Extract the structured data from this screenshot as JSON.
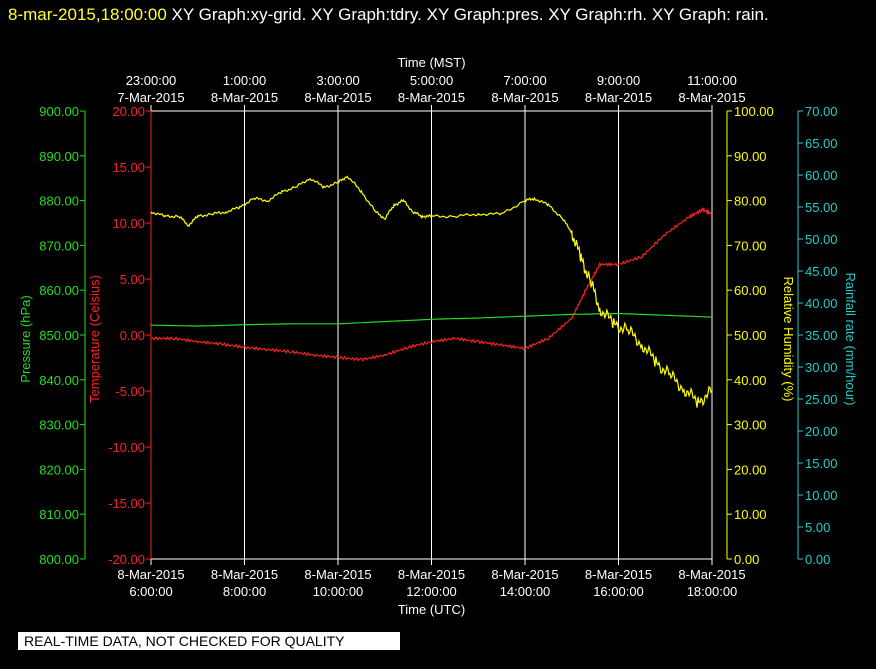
{
  "header": {
    "date": "8-mar-2015,18:00:00",
    "title": " XY Graph:xy-grid.  XY Graph:tdry.  XY Graph:pres.  XY Graph:rh.  XY Graph: rain."
  },
  "disclaimer": "REAL-TIME DATA, NOT CHECKED FOR QUALITY",
  "colors": {
    "background": "#000000",
    "grid": "#ffffff",
    "temperature": "#ff2020",
    "pressure": "#22dd22",
    "humidity": "#ffff00",
    "rainfall": "#22cccc"
  },
  "chart_data": {
    "type": "line",
    "grid": true,
    "xlabel_bottom": "Time (UTC)",
    "xlabel_top": "Time (MST)",
    "x_ticks_bottom": [
      {
        "date": "8-Mar-2015",
        "time": "6:00:00"
      },
      {
        "date": "8-Mar-2015",
        "time": "8:00:00"
      },
      {
        "date": "8-Mar-2015",
        "time": "10:00:00"
      },
      {
        "date": "8-Mar-2015",
        "time": "12:00:00"
      },
      {
        "date": "8-Mar-2015",
        "time": "14:00:00"
      },
      {
        "date": "8-Mar-2015",
        "time": "16:00:00"
      },
      {
        "date": "8-Mar-2015",
        "time": "18:00:00"
      }
    ],
    "x_ticks_top": [
      {
        "time": "23:00:00",
        "date": "7-Mar-2015"
      },
      {
        "time": "1:00:00",
        "date": "8-Mar-2015"
      },
      {
        "time": "3:00:00",
        "date": "8-Mar-2015"
      },
      {
        "time": "5:00:00",
        "date": "8-Mar-2015"
      },
      {
        "time": "7:00:00",
        "date": "8-Mar-2015"
      },
      {
        "time": "9:00:00",
        "date": "8-Mar-2015"
      },
      {
        "time": "11:00:00",
        "date": "8-Mar-2015"
      }
    ],
    "axes": {
      "pressure": {
        "label": "Pressure (hPa)",
        "range": [
          800,
          900
        ],
        "ticks": [
          "800.00",
          "810.00",
          "820.00",
          "830.00",
          "840.00",
          "850.00",
          "860.00",
          "870.00",
          "880.00",
          "890.00",
          "900.00"
        ]
      },
      "temperature": {
        "label": "Temperature (Celsius)",
        "range": [
          -20,
          20
        ],
        "ticks": [
          "-20.00",
          "-15.00",
          "-10.00",
          "-5.00",
          "0.00",
          "5.00",
          "10.00",
          "15.00",
          "20.00"
        ]
      },
      "humidity": {
        "label": "Relative Humidity (%)",
        "range": [
          0,
          100
        ],
        "ticks": [
          "0.00",
          "10.00",
          "20.00",
          "30.00",
          "40.00",
          "50.00",
          "60.00",
          "70.00",
          "80.00",
          "90.00",
          "100.00"
        ]
      },
      "rainfall": {
        "label": "Rainfall rate (mm/hour)",
        "range": [
          0,
          70
        ],
        "ticks": [
          "0.00",
          "5.00",
          "10.00",
          "15.00",
          "20.00",
          "25.00",
          "30.00",
          "35.00",
          "40.00",
          "45.00",
          "50.00",
          "55.00",
          "60.00",
          "65.00",
          "70.00"
        ]
      }
    },
    "series": [
      {
        "key": "temperature",
        "x_hours_utc": [
          6.0,
          6.5,
          7.0,
          7.5,
          8.0,
          8.5,
          9.0,
          9.5,
          10.0,
          10.5,
          11.0,
          11.5,
          12.0,
          12.5,
          13.0,
          13.5,
          14.0,
          14.5,
          15.0,
          15.3,
          15.6,
          16.0,
          16.5,
          17.0,
          17.5,
          17.8,
          18.0
        ],
        "values": [
          -0.3,
          -0.3,
          -0.6,
          -0.8,
          -1.1,
          -1.3,
          -1.5,
          -1.8,
          -2.0,
          -2.2,
          -1.8,
          -1.1,
          -0.6,
          -0.3,
          -0.6,
          -0.9,
          -1.2,
          -0.3,
          1.5,
          4.0,
          6.3,
          6.3,
          7.0,
          9.0,
          10.5,
          11.2,
          10.8
        ]
      },
      {
        "key": "pressure",
        "x_hours_utc": [
          6.0,
          7.0,
          8.0,
          9.0,
          10.0,
          11.0,
          12.0,
          13.0,
          14.0,
          15.0,
          16.0,
          17.0,
          18.0
        ],
        "values": [
          852.2,
          852.0,
          852.3,
          852.5,
          852.5,
          853.0,
          853.5,
          853.8,
          854.2,
          854.6,
          854.8,
          854.4,
          854.0
        ]
      },
      {
        "key": "humidity",
        "x_hours_utc": [
          6.0,
          6.3,
          6.6,
          6.8,
          7.0,
          7.3,
          7.6,
          7.9,
          8.2,
          8.5,
          8.8,
          9.1,
          9.4,
          9.7,
          10.0,
          10.2,
          10.5,
          10.8,
          11.0,
          11.2,
          11.4,
          11.6,
          11.8,
          12.0,
          12.5,
          13.0,
          13.5,
          14.0,
          14.2,
          14.5,
          14.8,
          15.0,
          15.2,
          15.4,
          15.6,
          15.9,
          16.2,
          16.5,
          16.8,
          17.1,
          17.4,
          17.7,
          18.0
        ],
        "values": [
          77.5,
          76.5,
          76.5,
          74.5,
          76.5,
          77.0,
          77.5,
          78.5,
          80.5,
          80.0,
          82.0,
          83.0,
          85.0,
          83.0,
          84.0,
          85.5,
          82.0,
          77.5,
          76.0,
          79.0,
          80.0,
          77.5,
          76.5,
          76.5,
          76.5,
          77.0,
          77.0,
          80.0,
          80.5,
          79.0,
          76.0,
          73.0,
          67.0,
          62.0,
          56.0,
          52.5,
          51.0,
          48.0,
          44.0,
          41.0,
          38.0,
          35.0,
          37.5
        ]
      },
      {
        "key": "rainfall",
        "x_hours_utc": [],
        "values": []
      }
    ]
  }
}
